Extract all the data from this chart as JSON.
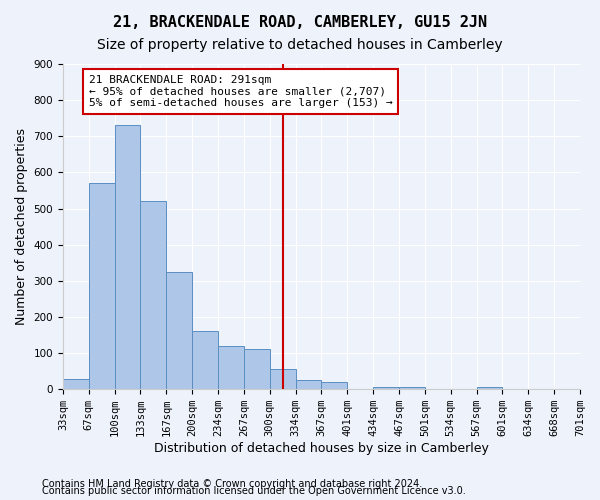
{
  "title": "21, BRACKENDALE ROAD, CAMBERLEY, GU15 2JN",
  "subtitle": "Size of property relative to detached houses in Camberley",
  "xlabel": "Distribution of detached houses by size in Camberley",
  "ylabel": "Number of detached properties",
  "footnote1": "Contains HM Land Registry data © Crown copyright and database right 2024.",
  "footnote2": "Contains public sector information licensed under the Open Government Licence v3.0.",
  "annotation_line1": "21 BRACKENDALE ROAD: 291sqm",
  "annotation_line2": "← 95% of detached houses are smaller (2,707)",
  "annotation_line3": "5% of semi-detached houses are larger (153) →",
  "bar_color": "#aec6e8",
  "bar_edge_color": "#5a8fc2",
  "vline_color": "#cc0000",
  "tick_labels": [
    "33sqm",
    "67sqm",
    "100sqm",
    "133sqm",
    "167sqm",
    "200sqm",
    "234sqm",
    "267sqm",
    "300sqm",
    "334sqm",
    "367sqm",
    "401sqm",
    "434sqm",
    "467sqm",
    "501sqm",
    "534sqm",
    "567sqm",
    "601sqm",
    "634sqm",
    "668sqm",
    "701sqm"
  ],
  "heights": [
    27,
    570,
    730,
    520,
    325,
    160,
    120,
    110,
    55,
    25,
    20,
    0,
    5,
    5,
    0,
    0,
    5,
    0,
    0,
    0
  ],
  "ylim": [
    0,
    900
  ],
  "yticks": [
    0,
    100,
    200,
    300,
    400,
    500,
    600,
    700,
    800,
    900
  ],
  "background_color": "#edf2fb",
  "grid_color": "#ffffff",
  "title_fontsize": 11,
  "subtitle_fontsize": 10,
  "xlabel_fontsize": 9,
  "ylabel_fontsize": 9,
  "tick_fontsize": 7.5,
  "annotation_fontsize": 8,
  "footnote_fontsize": 7
}
